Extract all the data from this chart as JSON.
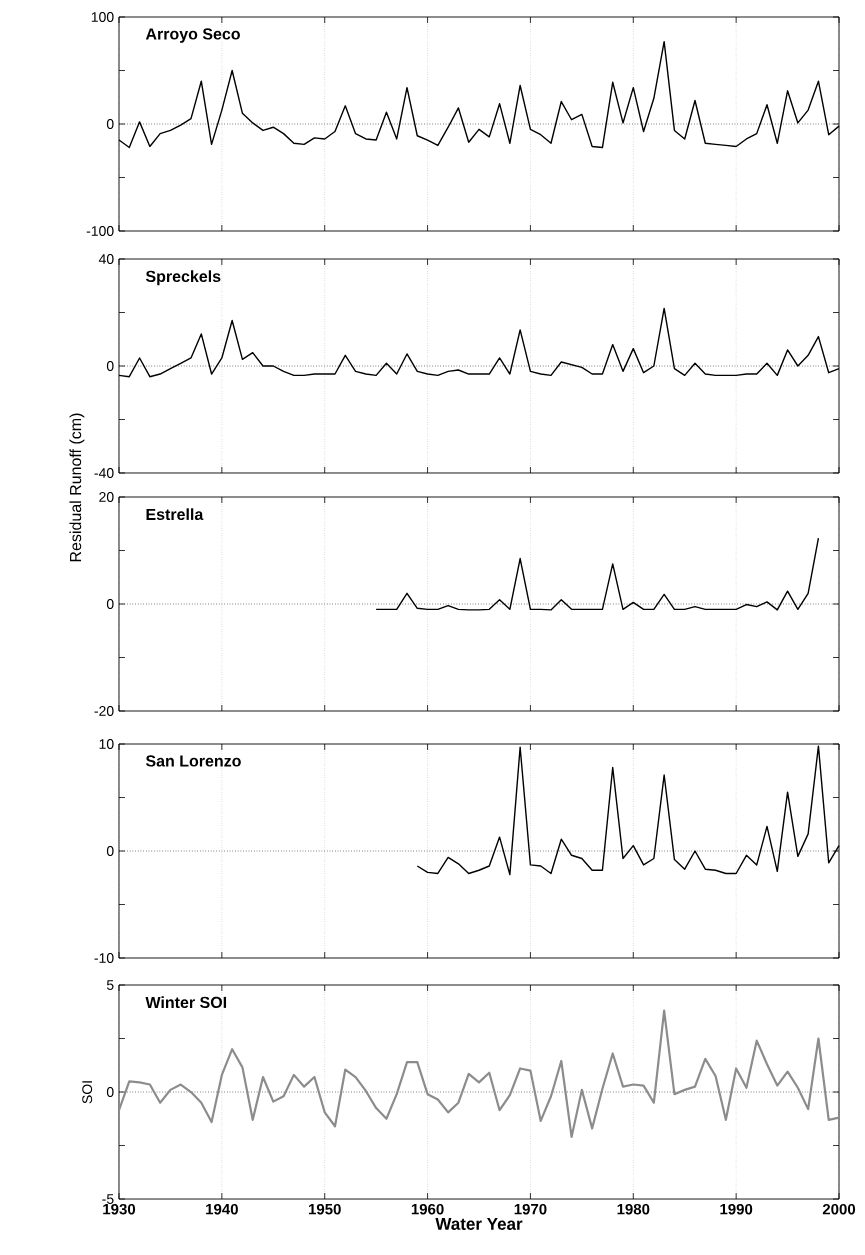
{
  "chart_data": [
    {
      "type": "line",
      "title": "Arroyo Seco",
      "xlim": [
        1930,
        2000
      ],
      "xticks": [
        1930,
        1940,
        1950,
        1960,
        1970,
        1980,
        1990,
        2000
      ],
      "ylim": [
        -100,
        100
      ],
      "yticks": [
        -100,
        {
          "value": -50,
          "label": null
        },
        0,
        {
          "value": 50,
          "label": null
        },
        100
      ],
      "grid": "x",
      "tick_labels": "y",
      "marker": "none",
      "line_style": "solid",
      "ref_lines": [
        {
          "axis": "y",
          "value": 0,
          "line_style": "dotted"
        }
      ],
      "x": [
        1930,
        1931,
        1932,
        1933,
        1934,
        1935,
        1936,
        1937,
        1938,
        1939,
        1940,
        1941,
        1942,
        1943,
        1944,
        1945,
        1946,
        1947,
        1948,
        1949,
        1950,
        1951,
        1952,
        1953,
        1954,
        1955,
        1956,
        1957,
        1958,
        1959,
        1960,
        1961,
        1962,
        1963,
        1964,
        1965,
        1966,
        1967,
        1968,
        1969,
        1970,
        1971,
        1972,
        1973,
        1974,
        1975,
        1976,
        1977,
        1978,
        1979,
        1980,
        1981,
        1982,
        1983,
        1984,
        1985,
        1986,
        1987,
        1988,
        1989,
        1990,
        1991,
        1992,
        1993,
        1994,
        1995,
        1996,
        1997,
        1998,
        1999,
        2000
      ],
      "series": [
        {
          "color": "#000000",
          "values": [
            -15,
            -22,
            2,
            -21,
            -9,
            -6,
            -1,
            5,
            40,
            -19,
            13,
            50,
            10,
            1,
            -6,
            -3,
            -9,
            -18,
            -19,
            -13,
            -14,
            -7,
            17,
            -9,
            -14,
            -15,
            11,
            -14,
            34,
            -11,
            -15,
            -20,
            -3,
            15,
            -17,
            -5,
            -12,
            19,
            -18,
            36,
            -5,
            -10,
            -18,
            21,
            4,
            9,
            -21,
            -22,
            39,
            1,
            34,
            -7,
            24,
            77,
            -6,
            -14,
            22,
            -18,
            -19,
            -20,
            -21,
            -14,
            -9,
            18,
            -18,
            31,
            1,
            13,
            40,
            -10,
            -2
          ]
        }
      ]
    },
    {
      "type": "line",
      "title": "Spreckels",
      "ylabel": "Residual Runoff (cm)",
      "xlim": [
        1930,
        2000
      ],
      "xticks": [
        1930,
        1940,
        1950,
        1960,
        1970,
        1980,
        1990,
        2000
      ],
      "ylim": [
        -40,
        40
      ],
      "yticks": [
        -40,
        {
          "value": -20,
          "label": null
        },
        0,
        {
          "value": 20,
          "label": null
        },
        40
      ],
      "grid": "x",
      "tick_labels": "y",
      "marker": "none",
      "line_style": "solid",
      "ref_lines": [
        {
          "axis": "y",
          "value": 0,
          "line_style": "dotted"
        }
      ],
      "x": [
        1930,
        1931,
        1932,
        1933,
        1934,
        1935,
        1936,
        1937,
        1938,
        1939,
        1940,
        1941,
        1942,
        1943,
        1944,
        1945,
        1946,
        1947,
        1948,
        1949,
        1950,
        1951,
        1952,
        1953,
        1954,
        1955,
        1956,
        1957,
        1958,
        1959,
        1960,
        1961,
        1962,
        1963,
        1964,
        1965,
        1966,
        1967,
        1968,
        1969,
        1970,
        1971,
        1972,
        1973,
        1974,
        1975,
        1976,
        1977,
        1978,
        1979,
        1980,
        1981,
        1982,
        1983,
        1984,
        1985,
        1986,
        1987,
        1988,
        1989,
        1990,
        1991,
        1992,
        1993,
        1994,
        1995,
        1996,
        1997,
        1998,
        1999,
        2000
      ],
      "series": [
        {
          "color": "#000000",
          "values": [
            -3.5,
            -4,
            3,
            -4,
            -3,
            -1,
            1,
            3,
            12,
            -3,
            3,
            17,
            2.5,
            5,
            0,
            0,
            -2,
            -3.5,
            -3.5,
            -3,
            -3,
            -3,
            4,
            -2,
            -3,
            -3.5,
            1,
            -3,
            4.5,
            -2,
            -3,
            -3.5,
            -2,
            -1.5,
            -3,
            -3,
            -3,
            3,
            -3,
            13.5,
            -2,
            -3,
            -3.5,
            1.5,
            0.5,
            -0.5,
            -3,
            -3,
            8,
            -2,
            6.5,
            -2.5,
            0,
            21.5,
            -1,
            -3.5,
            1,
            -3,
            -3.5,
            -3.5,
            -3.5,
            -3,
            -3,
            1,
            -3.5,
            6,
            0,
            4,
            11,
            -2.5,
            -1
          ]
        }
      ]
    },
    {
      "type": "line",
      "title": "Estrella",
      "xlim": [
        1930,
        2000
      ],
      "xticks": [
        1930,
        1940,
        1950,
        1960,
        1970,
        1980,
        1990,
        2000
      ],
      "ylim": [
        -20,
        20
      ],
      "yticks": [
        -20,
        {
          "value": -10,
          "label": null
        },
        0,
        {
          "value": 10,
          "label": null
        },
        20
      ],
      "grid": "x",
      "tick_labels": "y",
      "marker": "none",
      "line_style": "solid",
      "ref_lines": [
        {
          "axis": "y",
          "value": 0,
          "line_style": "dotted"
        }
      ],
      "x": [
        1955,
        1956,
        1957,
        1958,
        1959,
        1960,
        1961,
        1962,
        1963,
        1964,
        1965,
        1966,
        1967,
        1968,
        1969,
        1970,
        1971,
        1972,
        1973,
        1974,
        1975,
        1976,
        1977,
        1978,
        1979,
        1980,
        1981,
        1982,
        1983,
        1984,
        1985,
        1986,
        1987,
        1988,
        1989,
        1990,
        1991,
        1992,
        1993,
        1994,
        1995,
        1996,
        1997,
        1998
      ],
      "series": [
        {
          "color": "#000000",
          "values": [
            -1,
            -1,
            -1,
            2,
            -0.8,
            -1,
            -1,
            -0.3,
            -1,
            -1.1,
            -1.1,
            -1,
            0.8,
            -1,
            8.5,
            -1,
            -1,
            -1.1,
            0.8,
            -1,
            -1,
            -1,
            -1,
            7.5,
            -1,
            0.3,
            -1,
            -1,
            1.8,
            -1,
            -1,
            -0.5,
            -1,
            -1,
            -1,
            -1,
            -0.1,
            -0.5,
            0.4,
            -1.1,
            2.4,
            -1,
            2,
            12.3
          ]
        }
      ]
    },
    {
      "type": "line",
      "title": "San Lorenzo",
      "xlim": [
        1930,
        2000
      ],
      "xticks": [
        1930,
        1940,
        1950,
        1960,
        1970,
        1980,
        1990,
        2000
      ],
      "ylim": [
        -10,
        10
      ],
      "yticks": [
        -10,
        {
          "value": -5,
          "label": null
        },
        0,
        {
          "value": 5,
          "label": null
        },
        10
      ],
      "grid": "x",
      "tick_labels": "y",
      "marker": "none",
      "line_style": "solid",
      "ref_lines": [
        {
          "axis": "y",
          "value": 0,
          "line_style": "dotted"
        }
      ],
      "x": [
        1959,
        1960,
        1961,
        1962,
        1963,
        1964,
        1965,
        1966,
        1967,
        1968,
        1969,
        1970,
        1971,
        1972,
        1973,
        1974,
        1975,
        1976,
        1977,
        1978,
        1979,
        1980,
        1981,
        1982,
        1983,
        1984,
        1985,
        1986,
        1987,
        1988,
        1989,
        1990,
        1991,
        1992,
        1993,
        1994,
        1995,
        1996,
        1997,
        1998,
        1999,
        2000
      ],
      "series": [
        {
          "color": "#000000",
          "values": [
            -1.4,
            -2,
            -2.1,
            -0.6,
            -1.2,
            -2.1,
            -1.8,
            -1.4,
            1.3,
            -2.2,
            9.7,
            -1.3,
            -1.4,
            -2.1,
            1.1,
            -0.4,
            -0.7,
            -1.8,
            -1.8,
            7.8,
            -0.7,
            0.5,
            -1.3,
            -0.7,
            7.1,
            -0.8,
            -1.7,
            0,
            -1.7,
            -1.8,
            -2.1,
            -2.1,
            -0.4,
            -1.3,
            2.3,
            -1.9,
            5.5,
            -0.5,
            1.6,
            9.8,
            -1.1,
            0.5
          ]
        }
      ]
    },
    {
      "type": "line",
      "title": "Winter SOI",
      "xlabel": "Water Year",
      "ylabel": "SOI",
      "xlim": [
        1930,
        2000
      ],
      "xticks": [
        1930,
        1940,
        1950,
        1960,
        1970,
        1980,
        1990,
        2000
      ],
      "ylim": [
        -5,
        5
      ],
      "yticks": [
        -5,
        {
          "value": -2.5,
          "label": null
        },
        0,
        {
          "value": 2.5,
          "label": null
        },
        5
      ],
      "grid": "x",
      "marker": "none",
      "line_style": "solid",
      "ref_lines": [
        {
          "axis": "y",
          "value": 0,
          "line_style": "dotted"
        }
      ],
      "x": [
        1930,
        1931,
        1932,
        1933,
        1934,
        1935,
        1936,
        1937,
        1938,
        1939,
        1940,
        1941,
        1942,
        1943,
        1944,
        1945,
        1946,
        1947,
        1948,
        1949,
        1950,
        1951,
        1952,
        1953,
        1954,
        1955,
        1956,
        1957,
        1958,
        1959,
        1960,
        1961,
        1962,
        1963,
        1964,
        1965,
        1966,
        1967,
        1968,
        1969,
        1970,
        1971,
        1972,
        1973,
        1974,
        1975,
        1976,
        1977,
        1978,
        1979,
        1980,
        1981,
        1982,
        1983,
        1984,
        1985,
        1986,
        1987,
        1988,
        1989,
        1990,
        1991,
        1992,
        1993,
        1994,
        1995,
        1996,
        1997,
        1998,
        1999,
        2000
      ],
      "series": [
        {
          "color": "#8c8c8c",
          "values": [
            -0.85,
            0.5,
            0.45,
            0.35,
            -0.5,
            0.1,
            0.35,
            0,
            -0.5,
            -1.4,
            0.8,
            2,
            1.15,
            -1.3,
            0.7,
            -0.45,
            -0.2,
            0.8,
            0.25,
            0.7,
            -0.95,
            -1.6,
            1.05,
            0.7,
            0.05,
            -0.75,
            -1.25,
            -0.1,
            1.4,
            1.4,
            -0.1,
            -0.35,
            -0.95,
            -0.5,
            0.85,
            0.45,
            0.9,
            -0.85,
            -0.15,
            1.1,
            1,
            -1.35,
            -0.2,
            1.45,
            -2.1,
            0.1,
            -1.7,
            0.15,
            1.8,
            0.25,
            0.35,
            0.3,
            -0.5,
            3.8,
            -0.1,
            0.1,
            0.25,
            1.55,
            0.75,
            -1.3,
            1.1,
            0.2,
            2.4,
            1.3,
            0.3,
            0.95,
            0.2,
            -0.8,
            2.5,
            -1.3,
            -1.2
          ]
        }
      ]
    }
  ]
}
